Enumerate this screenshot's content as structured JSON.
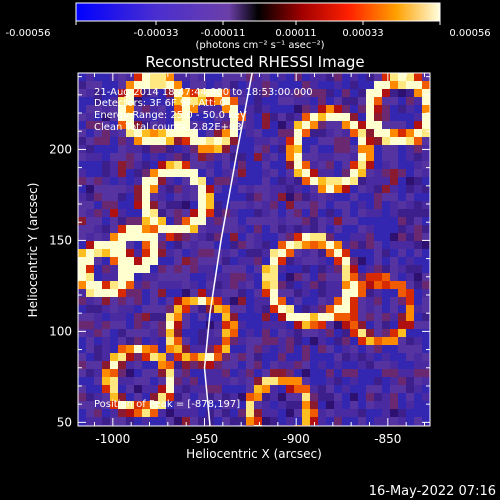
{
  "colorbar": {
    "tick_labels": [
      "-0.00056",
      "-0.00033",
      "-0.00011",
      "0.00011",
      "0.00033",
      "0.00056"
    ],
    "unit_label": "(photons cm⁻² s⁻¹ asec⁻²)",
    "range": [
      -0.00056,
      0.00056
    ]
  },
  "chart_data": {
    "type": "heatmap",
    "title": "Reconstructed RHESSI Image",
    "xlabel": "Heliocentric X (arcsec)",
    "ylabel": "Heliocentric Y (arcsec)",
    "xlim": [
      -1019,
      -827
    ],
    "ylim": [
      48,
      242
    ],
    "x_ticks": [
      -1000,
      -950,
      -900,
      -850
    ],
    "y_ticks": [
      50,
      100,
      150,
      200
    ],
    "x_tick_labels": [
      "-1000",
      "-950",
      "-900",
      "-850"
    ],
    "y_tick_labels": [
      "50",
      "100",
      "150",
      "200"
    ],
    "grid": false,
    "limb_line": [
      [
        -947,
        48
      ],
      [
        -950,
        80
      ],
      [
        -947,
        110
      ],
      [
        -941,
        150
      ],
      [
        -932,
        200
      ],
      [
        -924,
        242
      ]
    ],
    "peak": [
      -878,
      197
    ],
    "annotations": [
      "21-Aug-2014 18:47:44.000 to 18:53:00.000",
      "Detectors: 3F 6F 9F, Att: 0",
      "Energy Range: 25.0 - 50.0 keV",
      "Clean     Total counts: 2.82E+03",
      "Position of Peak = [-878,197]"
    ]
  },
  "footer": {
    "timestamp": "16-May-2022 07:16"
  }
}
